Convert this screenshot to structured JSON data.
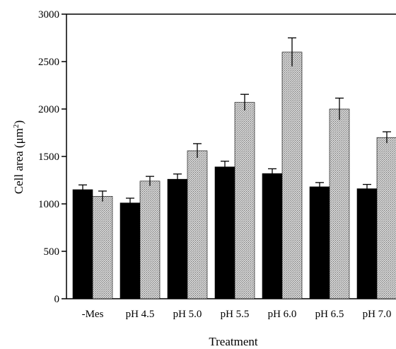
{
  "chart_data": {
    "type": "bar",
    "xlabel": "Treatment",
    "ylabel_main": "Cell area (μm",
    "ylabel_sup": "2",
    "ylabel_close": ")",
    "ylim": [
      0,
      3000
    ],
    "yticks": [
      0,
      500,
      1000,
      1500,
      2000,
      2500,
      3000
    ],
    "categories": [
      "-Mes",
      "pH 4.5",
      "pH 5.0",
      "pH 5.5",
      "pH 6.0",
      "pH 6.5",
      "pH 7.0"
    ],
    "grid": false,
    "legend": "none",
    "series": [
      {
        "color": "#000000",
        "values": [
          1150,
          1010,
          1260,
          1390,
          1320,
          1180,
          1160
        ],
        "errors": [
          50,
          50,
          55,
          60,
          50,
          45,
          45
        ]
      },
      {
        "color": "#c8c8c8",
        "pattern": "stipple",
        "values": [
          1080,
          1240,
          1560,
          2070,
          2600,
          2000,
          1700
        ],
        "errors": [
          55,
          50,
          75,
          85,
          150,
          115,
          60
        ]
      }
    ]
  }
}
